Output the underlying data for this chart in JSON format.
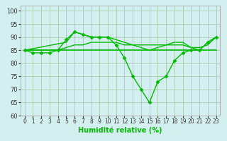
{
  "title": "",
  "xlabel": "Humidité relative (%)",
  "ylabel": "",
  "background_color": "#d4efef",
  "grid_color": "#aaccaa",
  "line_color": "#00bb00",
  "xlim": [
    -0.5,
    23.5
  ],
  "ylim": [
    60,
    102
  ],
  "yticks": [
    60,
    65,
    70,
    75,
    80,
    85,
    90,
    95,
    100
  ],
  "xticks": [
    0,
    1,
    2,
    3,
    4,
    5,
    6,
    7,
    8,
    9,
    10,
    11,
    12,
    13,
    14,
    15,
    16,
    17,
    18,
    19,
    20,
    21,
    22,
    23
  ],
  "series": [
    {
      "x": [
        0,
        1,
        2,
        3,
        4,
        5,
        6,
        7,
        8,
        9,
        10,
        11,
        12,
        13,
        14,
        15,
        16,
        17,
        18,
        19,
        20,
        21,
        22,
        23
      ],
      "y": [
        85,
        84,
        84,
        84,
        85,
        89,
        92,
        91,
        90,
        90,
        90,
        87,
        82,
        75,
        70,
        65,
        73,
        75,
        81,
        84,
        85,
        85,
        88,
        90
      ],
      "marker": "D",
      "markersize": 2.5,
      "linewidth": 1.0
    },
    {
      "x": [
        0,
        23
      ],
      "y": [
        85,
        85
      ],
      "marker": null,
      "markersize": 0,
      "linewidth": 1.2
    },
    {
      "x": [
        0,
        1,
        2,
        3,
        4,
        5,
        6,
        7,
        8,
        9,
        10,
        11,
        12,
        13,
        14,
        15,
        16,
        17,
        18,
        19,
        20,
        21,
        22,
        23
      ],
      "y": [
        85,
        85,
        85,
        85,
        85,
        86,
        87,
        87,
        88,
        88,
        88,
        88,
        87,
        87,
        87,
        87,
        87,
        87,
        87,
        87,
        86,
        86,
        87,
        90
      ],
      "marker": null,
      "markersize": 0,
      "linewidth": 1.0
    },
    {
      "x": [
        0,
        5,
        6,
        7,
        8,
        9,
        10,
        15,
        16,
        17,
        18,
        19,
        20,
        21,
        22,
        23
      ],
      "y": [
        85,
        88,
        92,
        91,
        90,
        90,
        90,
        85,
        86,
        87,
        88,
        88,
        86,
        85,
        88,
        90
      ],
      "marker": null,
      "markersize": 0,
      "linewidth": 1.0
    }
  ]
}
